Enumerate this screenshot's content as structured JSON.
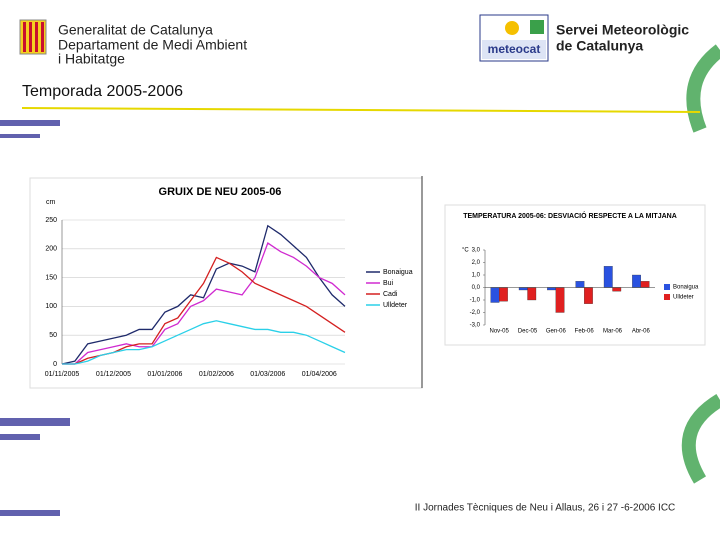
{
  "header": {
    "org": [
      "Generalitat de Catalunya",
      "Departament de Medi Ambient",
      "i Habitatge"
    ],
    "logo": "meteocat",
    "service": [
      "Servei Meteorològic",
      "de Catalunya"
    ],
    "title": "Temporada 2005-2006"
  },
  "footer": "II Jornades Tècniques de Neu i Allaus, 26 i 27 -6-2006 ICC",
  "chart_data": [
    {
      "type": "line",
      "title": "GRUIX DE NEU 2005-06",
      "y_label": "cm",
      "categories": [
        "01/11/2005",
        null,
        null,
        null,
        "01/12/2005",
        null,
        null,
        null,
        "01/01/2006",
        null,
        null,
        null,
        "01/02/2006",
        null,
        null,
        null,
        "01/03/2006",
        null,
        null,
        null,
        "01/04/2006",
        null,
        null
      ],
      "ylim": [
        0,
        250
      ],
      "yticks": [
        0,
        50,
        100,
        150,
        200,
        250
      ],
      "grid": true,
      "series": [
        {
          "name": "Bonaigua",
          "color": "#1f2a6b",
          "values": [
            0,
            5,
            35,
            40,
            45,
            50,
            60,
            60,
            90,
            100,
            120,
            115,
            165,
            175,
            170,
            160,
            240,
            225,
            205,
            185,
            150,
            120,
            100
          ]
        },
        {
          "name": "Bui",
          "color": "#d02ad0",
          "values": [
            0,
            0,
            20,
            25,
            30,
            35,
            30,
            30,
            60,
            70,
            100,
            110,
            130,
            125,
            120,
            150,
            210,
            195,
            185,
            170,
            150,
            140,
            120
          ]
        },
        {
          "name": "Cadi",
          "color": "#d42020",
          "values": [
            0,
            0,
            10,
            15,
            20,
            30,
            35,
            35,
            70,
            80,
            110,
            140,
            185,
            175,
            160,
            140,
            130,
            120,
            110,
            100,
            85,
            70,
            55
          ]
        },
        {
          "name": "Ulldeter",
          "color": "#2ad0e8",
          "values": [
            0,
            0,
            5,
            15,
            20,
            25,
            25,
            30,
            40,
            50,
            60,
            70,
            75,
            70,
            65,
            60,
            60,
            55,
            55,
            50,
            40,
            30,
            20
          ]
        }
      ]
    },
    {
      "type": "bar",
      "title": "TEMPERATURA 2005-06: DESVIACIÓ RESPECTE A LA MITJANA",
      "y_label": "°C",
      "categories": [
        "Nov-05",
        "Dec-05",
        "Gen-06",
        "Feb-06",
        "Mar-06",
        "Abr-06"
      ],
      "ylim": [
        -3,
        3
      ],
      "yticks": [
        {
          "value": 3,
          "label": "3,0"
        },
        {
          "value": 2,
          "label": "2,0"
        },
        {
          "value": 1,
          "label": "1,0"
        },
        {
          "value": 0,
          "label": "0,0"
        },
        {
          "value": -1,
          "label": "-1,0"
        },
        {
          "value": -2,
          "label": "-2,0"
        },
        {
          "value": -3,
          "label": "-3,0"
        }
      ],
      "series": [
        {
          "name": "Bonaigua",
          "color": "#2a52e0",
          "values": [
            -1.2,
            -0.2,
            -0.2,
            0.5,
            1.7,
            1.0
          ]
        },
        {
          "name": "Ulldeter",
          "color": "#e02020",
          "values": [
            -1.1,
            -1.0,
            -2.0,
            -1.3,
            -0.3,
            0.5
          ]
        }
      ]
    }
  ]
}
